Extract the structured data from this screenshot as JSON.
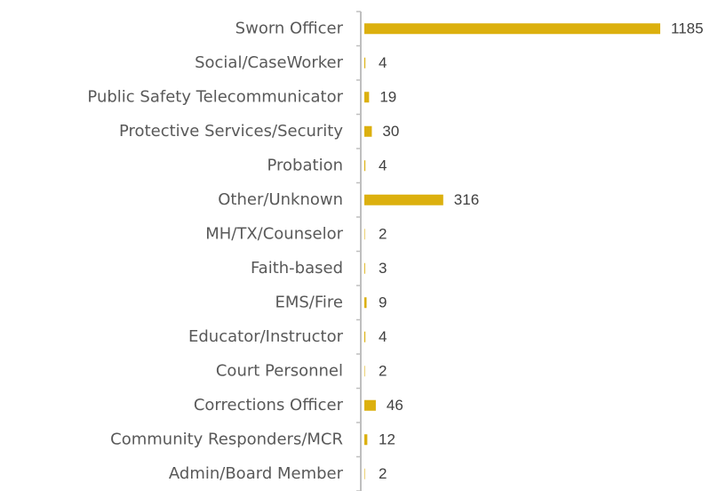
{
  "chart_data": {
    "type": "bar",
    "orientation": "horizontal",
    "categories": [
      "Sworn Officer",
      "Social/CaseWorker",
      "Public Safety Telecommunicator",
      "Protective Services/Security",
      "Probation",
      "Other/Unknown",
      "MH/TX/Counselor",
      "Faith-based",
      "EMS/Fire",
      "Educator/Instructor",
      "Court Personnel",
      "Corrections Officer",
      "Community Responders/MCR",
      "Admin/Board Member"
    ],
    "values": [
      1185,
      4,
      19,
      30,
      4,
      316,
      2,
      3,
      9,
      4,
      2,
      46,
      12,
      2
    ],
    "color": "#dcb00e"
  }
}
